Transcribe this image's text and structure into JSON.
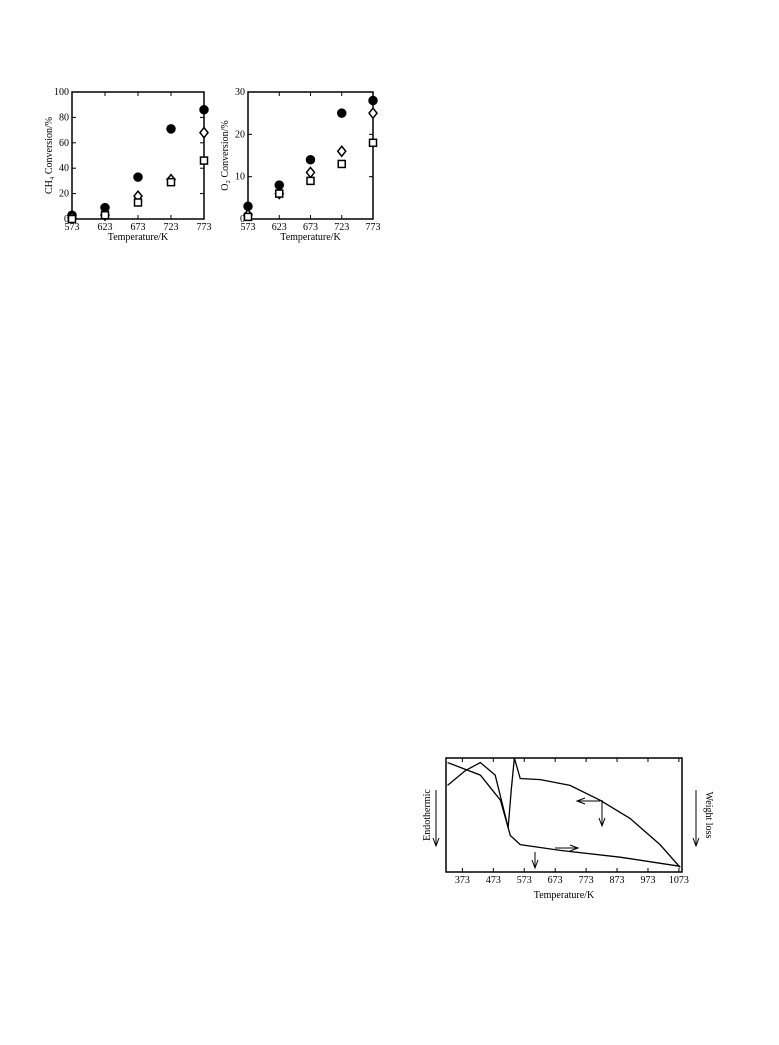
{
  "chart_data": [
    {
      "type": "scatter",
      "y_label": "CH₄ Conversion/%",
      "x_label": "Temperature/K",
      "x": [
        573,
        623,
        673,
        723,
        773
      ],
      "xlim": [
        573,
        773
      ],
      "xticks": [
        573,
        623,
        673,
        723,
        773
      ],
      "ylim": [
        0,
        100
      ],
      "yticks": [
        0,
        20,
        40,
        60,
        80,
        100
      ],
      "series": [
        {
          "marker": "circle",
          "color": "#000000",
          "values": [
            3,
            9,
            33,
            71,
            86
          ]
        },
        {
          "marker": "diamond",
          "color": "#000000",
          "values": [
            1,
            3,
            18,
            31,
            68
          ]
        },
        {
          "marker": "square",
          "color": "#000000",
          "values": [
            0,
            3,
            13,
            29,
            46
          ]
        }
      ]
    },
    {
      "type": "scatter",
      "y_label": "O₂ Conversion/%",
      "x_label": "Temperature/K",
      "x": [
        573,
        623,
        673,
        723,
        773
      ],
      "xlim": [
        573,
        773
      ],
      "xticks": [
        573,
        623,
        673,
        723,
        773
      ],
      "ylim": [
        0,
        30
      ],
      "yticks": [
        0,
        10,
        20,
        30
      ],
      "series": [
        {
          "marker": "circle",
          "color": "#000000",
          "values": [
            3,
            8,
            14,
            25,
            28
          ]
        },
        {
          "marker": "diamond",
          "color": "#000000",
          "values": [
            1,
            6,
            11,
            16,
            25
          ]
        },
        {
          "marker": "square",
          "color": "#000000",
          "values": [
            0.5,
            6,
            9,
            13,
            18
          ]
        }
      ]
    },
    {
      "type": "line",
      "x_label": "Temperature/K",
      "left_label": "Endothermic",
      "right_label": "Weight loss",
      "xlim": [
        320,
        1083
      ],
      "xticks": [
        373,
        473,
        573,
        673,
        773,
        873,
        973,
        1073
      ],
      "ylim": [
        0,
        100
      ],
      "series": [
        {
          "color": "#000000",
          "x": [
            325,
            383,
            431,
            479,
            521,
            531,
            541,
            560,
            625,
            721,
            818,
            915,
            1012,
            1077
          ],
          "values": [
            76,
            89,
            96,
            85,
            39,
            72,
            100,
            82,
            81,
            76,
            63,
            47,
            24,
            4
          ]
        },
        {
          "color": "#000000",
          "x": [
            325,
            431,
            496,
            528,
            560,
            689,
            883,
            1077
          ],
          "values": [
            96,
            85,
            63,
            32,
            24,
            19,
            13,
            5
          ]
        }
      ]
    }
  ]
}
